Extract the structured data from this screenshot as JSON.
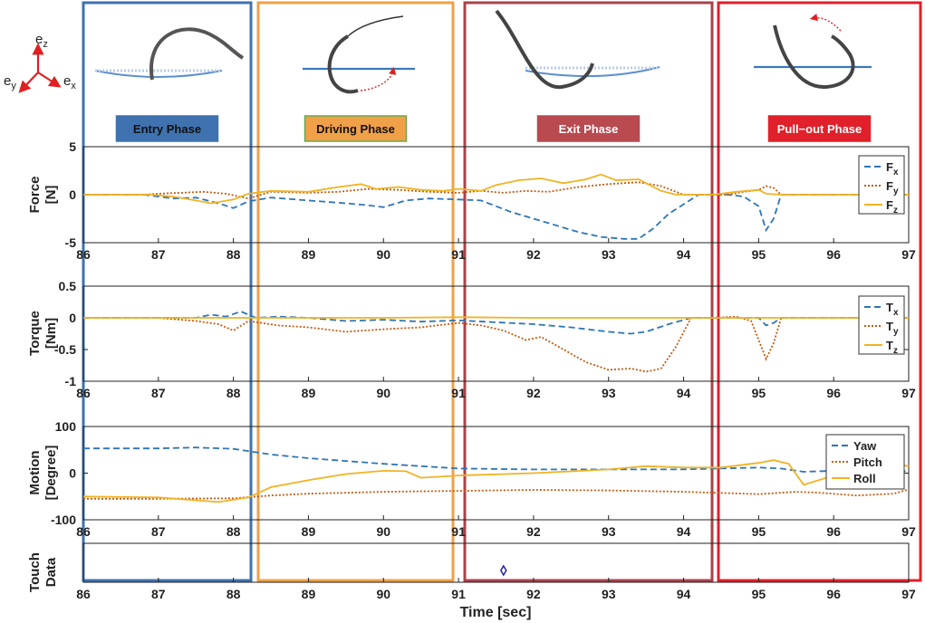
{
  "axes_labels": {
    "ex": "e",
    "ex_sub": "x",
    "ey": "e",
    "ey_sub": "y",
    "ez": "e",
    "ez_sub": "z"
  },
  "colors": {
    "fx": "#2e75b6",
    "fy": "#c55a11",
    "fz": "#f0b323",
    "entry": "#3f72af",
    "driving": "#f0a047",
    "exit": "#a8424a",
    "pullout": "#e0202a"
  },
  "phases": [
    {
      "label": "Entry Phase",
      "box_color": "#3f72af",
      "fill": "#3f72af",
      "text_color": "#111111",
      "start": 86.0,
      "end": 88.25
    },
    {
      "label": "Driving Phase",
      "box_color": "#f0a047",
      "fill": "#f0a047",
      "text_color": "#111111",
      "start": 88.4,
      "end": 91.1
    },
    {
      "label": "Exit Phase",
      "box_color": "#a8424a",
      "fill": "#b84a50",
      "text_color": "#ffffff",
      "start": 91.05,
      "end": 94.4
    },
    {
      "label": "Pull−out Phase",
      "box_color": "#e0202a",
      "fill": "#e0202a",
      "text_color": "#ffffff",
      "start": 94.4,
      "end": 97.1
    }
  ],
  "chart_data": [
    {
      "type": "line",
      "id": "force",
      "ylabel": "Force\n[N]",
      "ylabel_lines": [
        "Force",
        "[N]"
      ],
      "xlim": [
        86,
        97
      ],
      "ylim": [
        -5,
        5
      ],
      "yticks": [
        "5",
        "0",
        "-5"
      ],
      "yticks_values": [
        5,
        0,
        -5
      ],
      "xticks": [
        "86",
        "87",
        "88",
        "89",
        "90",
        "91",
        "92",
        "93",
        "94",
        "95",
        "96",
        "97"
      ],
      "series": [
        {
          "name": "F",
          "sub": "x",
          "color": "#2e75b6",
          "style": "dash",
          "x": [
            86,
            86.8,
            87.2,
            87.5,
            87.8,
            88.0,
            88.2,
            88.5,
            89.0,
            89.5,
            89.8,
            90.0,
            90.3,
            90.6,
            91.0,
            91.3,
            91.5,
            91.7,
            92.0,
            92.3,
            92.6,
            92.9,
            93.2,
            93.4,
            93.6,
            93.8,
            94.2,
            94.4,
            94.6,
            94.8,
            95.0,
            95.1,
            95.2,
            95.3,
            96.0,
            97
          ],
          "values": [
            0,
            0,
            -0.4,
            -0.3,
            -0.9,
            -1.4,
            -0.7,
            -0.3,
            -0.6,
            -0.9,
            -1.1,
            -1.3,
            -0.6,
            -0.4,
            -0.5,
            -0.6,
            -1.2,
            -1.8,
            -2.5,
            -3.2,
            -3.9,
            -4.4,
            -4.6,
            -4.6,
            -3.5,
            -2.0,
            0,
            0,
            0,
            -0.2,
            -1.2,
            -3.7,
            -2.5,
            0,
            0,
            0
          ]
        },
        {
          "name": "F",
          "sub": "y",
          "color": "#c55a11",
          "style": "dot",
          "x": [
            86,
            86.8,
            87.0,
            87.3,
            87.6,
            87.9,
            88.2,
            88.5,
            89.0,
            89.4,
            89.8,
            90.2,
            90.6,
            91.0,
            91.3,
            91.6,
            91.9,
            92.2,
            92.6,
            93.0,
            93.4,
            93.7,
            94.0,
            94.4,
            94.6,
            94.8,
            95.0,
            95.1,
            95.2,
            95.3,
            96,
            97
          ],
          "values": [
            0,
            0,
            0.1,
            0.2,
            0.3,
            0.1,
            -0.4,
            0.3,
            0.2,
            0.3,
            0.6,
            0.5,
            0.3,
            0.2,
            0.4,
            0.2,
            0.4,
            0.3,
            0.8,
            1.1,
            1.3,
            0.9,
            0,
            0,
            0,
            0.3,
            0.5,
            0.9,
            0.7,
            0,
            0,
            0
          ]
        },
        {
          "name": "F",
          "sub": "z",
          "color": "#f0b323",
          "style": "solid",
          "x": [
            86,
            86.9,
            87.2,
            87.5,
            87.7,
            88.0,
            88.2,
            88.5,
            89.0,
            89.4,
            89.7,
            89.9,
            90.2,
            90.5,
            90.8,
            91.0,
            91.3,
            91.5,
            91.8,
            92.1,
            92.4,
            92.7,
            92.9,
            93.1,
            93.4,
            93.7,
            93.9,
            94.1,
            94.4,
            94.7,
            95.0,
            95.1,
            95.3,
            96,
            97
          ],
          "values": [
            0,
            0,
            -0.2,
            -0.6,
            -0.9,
            -0.5,
            0.1,
            0.4,
            0.3,
            0.8,
            1.1,
            0.6,
            0.8,
            0.5,
            0.4,
            0.6,
            0.4,
            1.0,
            1.5,
            1.7,
            1.2,
            1.6,
            2.1,
            1.5,
            1.6,
            0.4,
            0.0,
            0.0,
            0.0,
            0.3,
            0.5,
            0.1,
            0,
            0,
            0
          ]
        }
      ]
    },
    {
      "type": "line",
      "id": "torque",
      "ylabel": "Torque\n[Nm]",
      "ylabel_lines": [
        "Torque",
        "[Nm]"
      ],
      "xlim": [
        86,
        97
      ],
      "ylim": [
        -1,
        0.5
      ],
      "yticks": [
        "0.5",
        "0",
        "-0.5",
        "-1"
      ],
      "yticks_values": [
        0.5,
        0,
        -0.5,
        -1
      ],
      "xticks": [
        "86",
        "87",
        "88",
        "89",
        "90",
        "91",
        "92",
        "93",
        "94",
        "95",
        "96",
        "97"
      ],
      "series": [
        {
          "name": "T",
          "sub": "x",
          "color": "#2e75b6",
          "style": "dash",
          "x": [
            86,
            87.0,
            87.5,
            87.7,
            87.9,
            88.1,
            88.3,
            88.6,
            89.0,
            89.5,
            90.0,
            90.5,
            91.0,
            91.5,
            92.0,
            92.5,
            93.0,
            93.3,
            93.5,
            93.8,
            94.1,
            94.4,
            94.6,
            94.9,
            95.0,
            95.1,
            95.2,
            95.3,
            96,
            97
          ],
          "values": [
            0,
            0,
            0.0,
            0.05,
            0.02,
            0.1,
            0.0,
            0.02,
            0.0,
            -0.05,
            -0.03,
            -0.06,
            -0.04,
            -0.07,
            -0.1,
            -0.15,
            -0.22,
            -0.25,
            -0.22,
            -0.1,
            0,
            0,
            0,
            0.0,
            0.0,
            -0.12,
            -0.08,
            0,
            0,
            0
          ]
        },
        {
          "name": "T",
          "sub": "y",
          "color": "#c55a11",
          "style": "dot",
          "x": [
            86,
            87.0,
            87.5,
            87.8,
            88.0,
            88.2,
            88.6,
            89.0,
            89.5,
            90.0,
            90.5,
            91.0,
            91.3,
            91.6,
            91.9,
            92.1,
            92.4,
            92.7,
            93.0,
            93.3,
            93.5,
            93.7,
            93.9,
            94.1,
            94.4,
            94.7,
            94.9,
            95.0,
            95.1,
            95.2,
            95.3,
            96,
            97
          ],
          "values": [
            0,
            0,
            -0.05,
            -0.1,
            -0.2,
            -0.05,
            -0.12,
            -0.15,
            -0.22,
            -0.18,
            -0.15,
            -0.08,
            -0.12,
            -0.2,
            -0.35,
            -0.3,
            -0.5,
            -0.7,
            -0.82,
            -0.8,
            -0.85,
            -0.8,
            -0.45,
            0,
            0,
            0.02,
            -0.05,
            -0.35,
            -0.65,
            -0.4,
            0,
            0,
            0
          ]
        },
        {
          "name": "T",
          "sub": "z",
          "color": "#f0b323",
          "style": "solid",
          "x": [
            86,
            88.0,
            90.0,
            91.0,
            92.0,
            93.0,
            94.0,
            95.0,
            96.0,
            97
          ],
          "values": [
            0,
            0,
            0,
            0.01,
            0,
            0,
            0,
            0,
            0,
            0
          ]
        }
      ]
    },
    {
      "type": "line",
      "id": "motion",
      "ylabel": "Motion\n[Degree]",
      "ylabel_lines": [
        "Motion",
        "[Degree]"
      ],
      "xlim": [
        86,
        97
      ],
      "ylim": [
        -100,
        100
      ],
      "yticks": [
        "100",
        "0",
        "-100"
      ],
      "yticks_values": [
        100,
        0,
        -100
      ],
      "xticks": [
        "86",
        "87",
        "88",
        "89",
        "90",
        "91",
        "92",
        "93",
        "94",
        "95",
        "96",
        "97"
      ],
      "series": [
        {
          "name": "Yaw",
          "sub": "",
          "color": "#2e75b6",
          "style": "dash",
          "x": [
            86,
            87.0,
            87.5,
            88.0,
            88.5,
            89.0,
            90.0,
            91.0,
            92.0,
            93.0,
            94.0,
            95.0,
            95.3,
            95.6,
            96.0,
            96.3,
            97
          ],
          "values": [
            53,
            53,
            55,
            52,
            40,
            32,
            20,
            10,
            8,
            8,
            8,
            12,
            10,
            3,
            5,
            4,
            4
          ]
        },
        {
          "name": "Pitch",
          "sub": "",
          "color": "#c55a11",
          "style": "dot",
          "x": [
            86,
            87.0,
            88.0,
            88.5,
            89.0,
            90.0,
            91.0,
            92.0,
            93.0,
            94.0,
            95.0,
            95.5,
            95.8,
            96.3,
            96.8,
            97
          ],
          "values": [
            -55,
            -55,
            -54,
            -48,
            -44,
            -40,
            -38,
            -36,
            -37,
            -40,
            -45,
            -40,
            -42,
            -48,
            -44,
            -35
          ]
        },
        {
          "name": "Roll",
          "sub": "",
          "color": "#f0b323",
          "style": "solid",
          "x": [
            86,
            87.0,
            87.8,
            88.2,
            88.5,
            89.0,
            89.5,
            90.0,
            90.3,
            90.5,
            91.0,
            92.0,
            93.0,
            93.5,
            94.0,
            94.5,
            95.0,
            95.2,
            95.4,
            95.6,
            96.0,
            96.5,
            96.8,
            97
          ],
          "values": [
            -50,
            -52,
            -62,
            -52,
            -30,
            -15,
            -2,
            5,
            4,
            -10,
            -5,
            0,
            8,
            15,
            12,
            12,
            22,
            28,
            20,
            -25,
            -5,
            15,
            20,
            15
          ]
        }
      ]
    },
    {
      "type": "scatter",
      "id": "touch",
      "ylabel": "Touch\nData",
      "ylabel_lines": [
        "Touch",
        "Data"
      ],
      "xlim": [
        86,
        97
      ],
      "xticks": [
        "86",
        "87",
        "88",
        "89",
        "90",
        "91",
        "92",
        "93",
        "94",
        "95",
        "96",
        "97"
      ],
      "xlabel": "Time [sec]",
      "series": [
        {
          "name": "touch",
          "color": "#1f1fb0",
          "marker": "diamond",
          "x": [
            91.6
          ],
          "values": [
            0
          ]
        }
      ]
    }
  ]
}
